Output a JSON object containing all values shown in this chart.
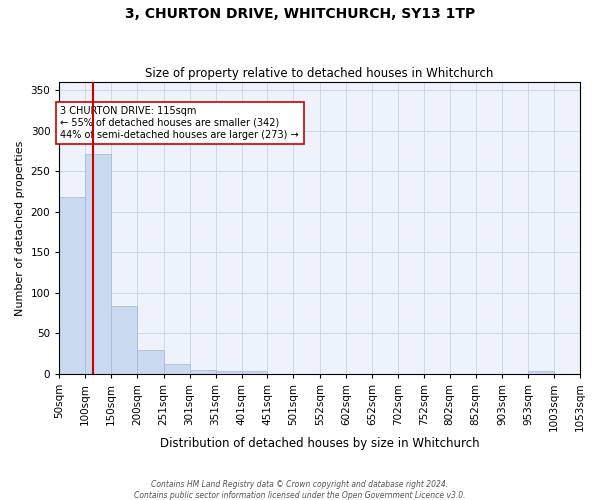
{
  "title1": "3, CHURTON DRIVE, WHITCHURCH, SY13 1TP",
  "title2": "Size of property relative to detached houses in Whitchurch",
  "xlabel": "Distribution of detached houses by size in Whitchurch",
  "ylabel": "Number of detached properties",
  "bar_values": [
    218,
    271,
    84,
    29,
    12,
    5,
    4,
    4,
    0,
    0,
    0,
    0,
    0,
    0,
    0,
    0,
    0,
    0,
    3,
    0
  ],
  "bin_edges": [
    50,
    100,
    150,
    200,
    251,
    301,
    351,
    401,
    451,
    501,
    552,
    602,
    652,
    702,
    752,
    802,
    852,
    903,
    953,
    1003,
    1053
  ],
  "tick_labels": [
    "50sqm",
    "100sqm",
    "150sqm",
    "200sqm",
    "251sqm",
    "301sqm",
    "351sqm",
    "401sqm",
    "451sqm",
    "501sqm",
    "552sqm",
    "602sqm",
    "652sqm",
    "702sqm",
    "752sqm",
    "802sqm",
    "852sqm",
    "903sqm",
    "953sqm",
    "1003sqm",
    "1053sqm"
  ],
  "bar_color": "#c9d9f0",
  "bar_edge_color": "#a0b8d8",
  "grid_color": "#d0d8e8",
  "bg_color": "#eef2fa",
  "vline_x": 115,
  "vline_color": "#cc0000",
  "annotation_text": "3 CHURTON DRIVE: 115sqm\n← 55% of detached houses are smaller (342)\n44% of semi-detached houses are larger (273) →",
  "annotation_box_color": "white",
  "annotation_box_edge": "#cc0000",
  "footnote1": "Contains HM Land Registry data © Crown copyright and database right 2024.",
  "footnote2": "Contains public sector information licensed under the Open Government Licence v3.0.",
  "ylim": [
    0,
    360
  ],
  "yticks": [
    0,
    50,
    100,
    150,
    200,
    250,
    300,
    350
  ]
}
